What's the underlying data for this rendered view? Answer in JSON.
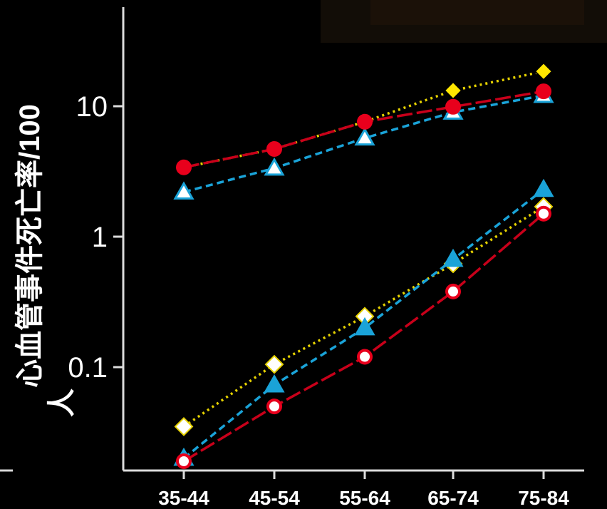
{
  "chart_data": {
    "type": "line",
    "ylabel_line1": "心血管事件死亡率/100",
    "ylabel_line2": "人",
    "yscale": "log",
    "ylim": [
      0.013,
      60
    ],
    "yticks": [
      {
        "value": 0.1,
        "label": "0.1"
      },
      {
        "value": 1,
        "label": "1"
      },
      {
        "value": 10,
        "label": "10"
      }
    ],
    "categories": [
      "35-44",
      "45-54",
      "55-64",
      "65-74",
      "75-84"
    ],
    "grid": false,
    "series": [
      {
        "marker": "diamond",
        "fill": "#ffe600",
        "stroke": "#000000",
        "line_color": "#e6d200",
        "dash": "3,5",
        "values": [
          3.4,
          4.7,
          7.6,
          13.2,
          18.5
        ]
      },
      {
        "marker": "circle",
        "fill": "#e8001c",
        "stroke": "#e8001c",
        "line_color": "#c8001a",
        "dash": "22,6",
        "values": [
          3.4,
          4.7,
          7.6,
          9.9,
          13.0
        ]
      },
      {
        "marker": "triangle",
        "fill": "#ffffff",
        "stroke": "#1aa3d8",
        "line_color": "#1aa3d8",
        "dash": "10,6",
        "values": [
          2.2,
          3.35,
          5.7,
          9.0,
          12.1
        ]
      },
      {
        "marker": "diamond",
        "fill": "#ffffff",
        "stroke": "#e6d200",
        "line_color": "#e6d200",
        "dash": "3,5",
        "values": [
          0.035,
          0.105,
          0.245,
          0.62,
          1.7
        ]
      },
      {
        "marker": "triangle",
        "fill": "#1aa3d8",
        "stroke": "#1aa3d8",
        "line_color": "#1aa3d8",
        "dash": "10,6",
        "values": [
          0.02,
          0.073,
          0.2,
          0.67,
          2.3
        ]
      },
      {
        "marker": "circle",
        "fill": "#ffffff",
        "stroke": "#e8001c",
        "line_color": "#c8001a",
        "dash": "22,6",
        "values": [
          0.019,
          0.05,
          0.12,
          0.38,
          1.5
        ]
      }
    ]
  }
}
